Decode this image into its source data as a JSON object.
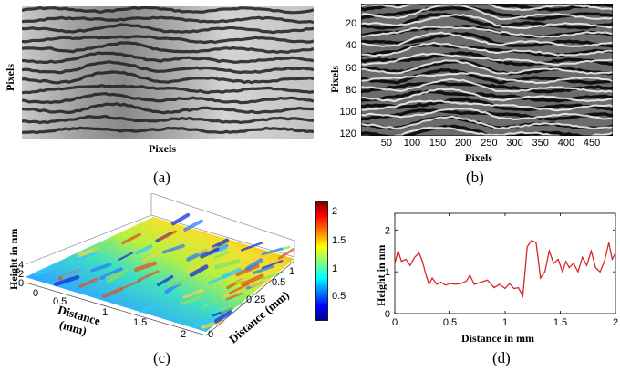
{
  "panel_a": {
    "caption": "(a)",
    "xlabel": "Pixels",
    "ylabel": "Pixels"
  },
  "panel_b": {
    "caption": "(b)",
    "xlabel": "Pixels",
    "ylabel": "Pixels",
    "xticks": [
      "50",
      "100",
      "150",
      "200",
      "250",
      "300",
      "350",
      "400",
      "450"
    ],
    "yticks": [
      "20",
      "40",
      "60",
      "80",
      "100",
      "120"
    ]
  },
  "panel_c": {
    "caption": "(c)",
    "zlabel": "Height in nm",
    "xlabel_line1": "Distance",
    "xlabel_line2": "(mm)",
    "ylabel": "Distance (mm)",
    "xticks": [
      "0",
      "0.5",
      "1",
      "1.5",
      "2"
    ],
    "yticks": [
      "0",
      "0.25",
      "0.5",
      "1"
    ],
    "zticks": [
      "0",
      "2",
      "4"
    ],
    "colorbar_ticks": [
      "2",
      "1.5",
      "1",
      "0.5"
    ]
  },
  "chart_data": [
    {
      "type": "line",
      "panel": "(d)",
      "xlabel": "Distance in mm",
      "ylabel": "Height in nm",
      "xlim": [
        0,
        2
      ],
      "ylim": [
        0,
        2.4
      ],
      "xticks": [
        "0",
        "0.5",
        "1",
        "1.5",
        "2"
      ],
      "yticks": [
        "0",
        "1",
        "2"
      ],
      "color": "#d62728",
      "x": [
        0,
        0.03,
        0.06,
        0.1,
        0.14,
        0.18,
        0.22,
        0.25,
        0.28,
        0.31,
        0.34,
        0.38,
        0.42,
        0.46,
        0.5,
        0.55,
        0.6,
        0.65,
        0.68,
        0.72,
        0.78,
        0.84,
        0.9,
        0.95,
        1.0,
        1.04,
        1.08,
        1.12,
        1.16,
        1.18,
        1.2,
        1.24,
        1.28,
        1.3,
        1.32,
        1.36,
        1.4,
        1.44,
        1.48,
        1.52,
        1.55,
        1.58,
        1.62,
        1.66,
        1.7,
        1.74,
        1.78,
        1.82,
        1.86,
        1.9,
        1.94,
        1.97,
        2.0
      ],
      "y": [
        1.2,
        1.5,
        1.25,
        1.3,
        1.15,
        1.35,
        1.45,
        1.25,
        0.95,
        0.7,
        0.85,
        0.7,
        0.75,
        0.68,
        0.72,
        0.7,
        0.72,
        0.78,
        0.92,
        0.7,
        0.75,
        0.8,
        0.62,
        0.7,
        0.6,
        0.72,
        0.6,
        0.62,
        0.42,
        1.0,
        1.6,
        1.75,
        1.7,
        1.3,
        0.85,
        1.0,
        1.5,
        1.2,
        1.3,
        1.0,
        1.25,
        1.1,
        1.2,
        1.0,
        1.35,
        1.15,
        1.5,
        1.1,
        1.0,
        1.25,
        1.7,
        1.3,
        1.45
      ]
    }
  ]
}
